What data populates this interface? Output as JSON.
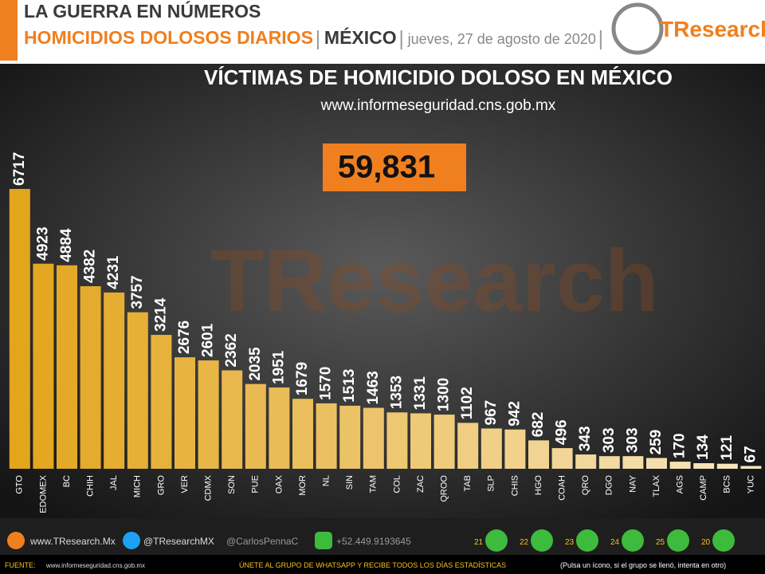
{
  "header": {
    "title": "LA GUERRA EN NÚMEROS",
    "subtitle": "HOMICIDIOS DOLOSOS DIARIOS",
    "country": "MÉXICO",
    "date": "jueves, 27 de agosto de 2020",
    "logo": "TResearch"
  },
  "chart_data": {
    "type": "bar",
    "title": "VÍCTIMAS DE HOMICIDIO DOLOSO EN MÉXICO",
    "subtitle": "www.informeseguridad.cns.gob.mx",
    "total_label": "59,831",
    "watermark": "TResearch",
    "categories": [
      "GTO",
      "EDOMEX",
      "BC",
      "CHIH",
      "JAL",
      "MICH",
      "GRO",
      "VER",
      "CDMX",
      "SON",
      "PUE",
      "OAX",
      "MOR",
      "NL",
      "SIN",
      "TAM",
      "COL",
      "ZAC",
      "QROO",
      "TAB",
      "SLP",
      "CHIS",
      "HGO",
      "COAH",
      "QRO",
      "DGO",
      "NAY",
      "TLAX",
      "AGS",
      "CAMP",
      "BCS",
      "YUC"
    ],
    "values": [
      6717,
      4923,
      4884,
      4382,
      4231,
      3757,
      3214,
      2676,
      2601,
      2362,
      2035,
      1951,
      1679,
      1570,
      1513,
      1463,
      1353,
      1331,
      1300,
      1102,
      967,
      942,
      682,
      496,
      343,
      303,
      303,
      259,
      170,
      134,
      121,
      67
    ],
    "color_start": "#e3a51c",
    "color_end": "#f7e6c2"
  },
  "footer": {
    "web": "www.TResearch.Mx",
    "twitter": "@TResearchMX",
    "author": "@CarlosPennaC",
    "phone": "+52.449.9193645",
    "groups": [
      "21",
      "22",
      "23",
      "24",
      "25",
      "20"
    ],
    "source_label": "FUENTE:",
    "source": "www.informeseguridad.cns.gob.mx",
    "join": "ÚNETE AL GRUPO DE WHATSAPP Y RECIBE TODOS LOS DÍAS ESTADÍSTICAS",
    "note": "(Pulsa un ícono, si el grupo se llenó, intenta en otro)"
  }
}
